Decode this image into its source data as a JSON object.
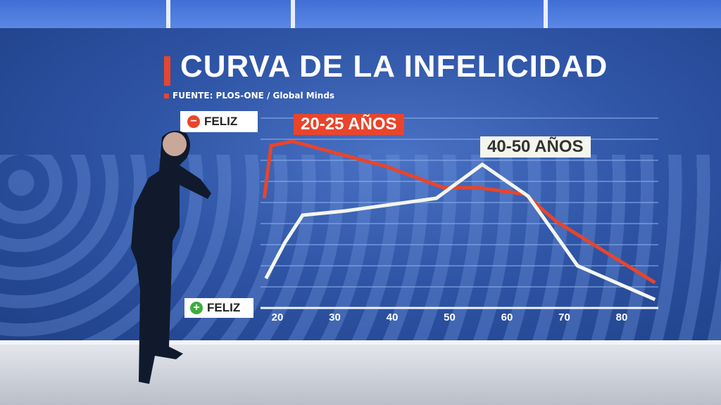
{
  "title": "CURVA DE LA INFELICIDAD",
  "source": "FUENTE: PLOS-ONE / Global Minds",
  "colors": {
    "accent": "#e8452c",
    "background": "#2f55a6",
    "white_line": "#f4f6ee",
    "red_line": "#e8452c"
  },
  "y_labels": {
    "top": {
      "icon": "minus-circle-icon",
      "icon_glyph": "−",
      "text": "FELIZ",
      "color": "#e8452c"
    },
    "bottom": {
      "icon": "plus-circle-icon",
      "icon_glyph": "+",
      "text": "FELIZ",
      "color": "#3cae3c"
    }
  },
  "chart_data": {
    "type": "line",
    "title": "CURVA DE LA INFELICIDAD",
    "xlabel": "",
    "ylabel": "",
    "x_ticks": [
      20,
      30,
      40,
      50,
      60,
      70,
      80
    ],
    "xlim": [
      17,
      87
    ],
    "ylim": [
      0,
      9
    ],
    "grid": true,
    "y_axis_note": "top = − FELIZ, bottom = + FELIZ (unlabeled index)",
    "annotations": [
      {
        "text": "20-25 AÑOS",
        "series": "red"
      },
      {
        "text": "40-50 AÑOS",
        "series": "white"
      }
    ],
    "series": [
      {
        "color": "#e8452c",
        "x": [
          17.7,
          18.9,
          22.6,
          28.1,
          39.1,
          49.0,
          55.1,
          63.1,
          68.6,
          85.8
        ],
        "y": [
          5.2,
          7.7,
          7.9,
          7.5,
          6.7,
          5.7,
          5.7,
          5.4,
          4.1,
          1.2
        ]
      },
      {
        "color": "#f4f6ee",
        "x": [
          18.0,
          21.3,
          24.4,
          31.8,
          47.7,
          55.7,
          63.7,
          72.3,
          85.8
        ],
        "y": [
          1.4,
          3.1,
          4.4,
          4.6,
          5.2,
          6.8,
          5.3,
          2.0,
          0.4
        ]
      }
    ]
  }
}
